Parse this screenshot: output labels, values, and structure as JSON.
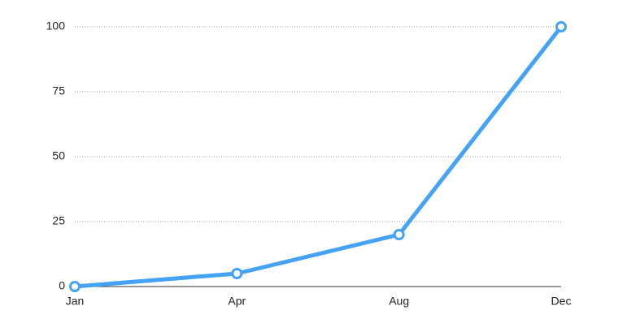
{
  "chart_data": {
    "type": "line",
    "categories": [
      "Jan",
      "Apr",
      "Aug",
      "Dec"
    ],
    "values": [
      0,
      5,
      20,
      100
    ],
    "color": "#45a3f5",
    "ylim": [
      0,
      100
    ],
    "yticks": [
      0,
      25,
      50,
      75,
      100
    ],
    "grid": true
  }
}
